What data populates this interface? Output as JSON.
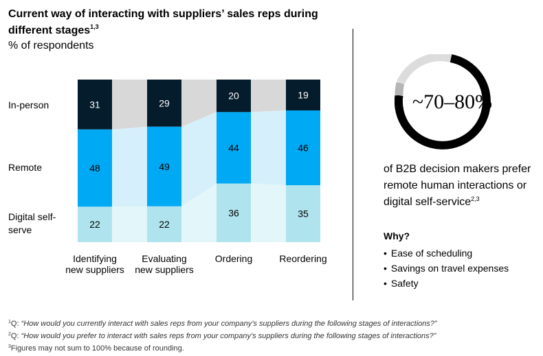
{
  "header": {
    "title": "Current way of interacting with suppliers’ sales reps during different stages",
    "title_sup": "1,3",
    "subtitle": "% of respondents"
  },
  "colors": {
    "in_person": "#051c2c",
    "in_person_connector": "#d8d8d8",
    "remote": "#00a9f4",
    "remote_connector": "#d6f0fb",
    "digital": "#afe4ee",
    "digital_connector": "#e3f6f9"
  },
  "chart_data": {
    "type": "bar",
    "stacked": true,
    "categories": [
      "Identifying new suppliers",
      "Evaluating new suppliers",
      "Ordering",
      "Reordering"
    ],
    "series": [
      {
        "name": "In-person",
        "values": [
          31,
          29,
          20,
          19
        ]
      },
      {
        "name": "Remote",
        "values": [
          48,
          49,
          44,
          46
        ]
      },
      {
        "name": "Digital self-serve",
        "values": [
          22,
          22,
          36,
          35
        ]
      }
    ],
    "row_labels": [
      "In-person",
      "Remote",
      "Digital self-serve"
    ]
  },
  "category_lines": [
    [
      "Identifying",
      "new suppliers"
    ],
    [
      "Evaluating",
      "new suppliers"
    ],
    [
      "Ordering"
    ],
    [
      "Reordering"
    ]
  ],
  "callout": {
    "big_number": "~70–80%",
    "text": "of B2B decision makers prefer remote human interactions or digital self-service",
    "text_sup": "2,3",
    "why_title": "Why?",
    "reasons": [
      "Ease of scheduling",
      "Savings on travel expenses",
      "Safety"
    ]
  },
  "footnotes": [
    {
      "sup": "1",
      "prefix": "Q: ",
      "text": "“How would you currently interact with sales reps from your company’s suppliers during the following stages of interactions?”"
    },
    {
      "sup": "2",
      "prefix": "Q: ",
      "text": "“How would you prefer to interact with sales reps from your company’s suppliers during the following stages of interactions?”"
    },
    {
      "sup": "3",
      "prefix": "",
      "text": "Figures may not sum to 100% because of rounding."
    }
  ]
}
